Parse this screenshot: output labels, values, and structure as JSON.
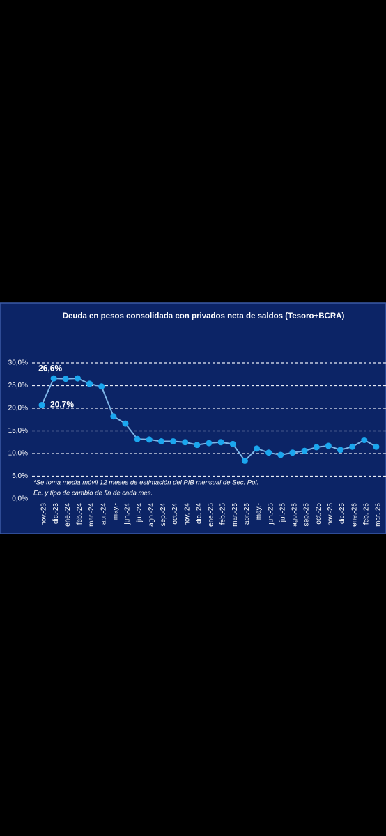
{
  "chart_data": {
    "type": "line",
    "title": "Deuda en pesos consolidada con privados neta de saldos (Tesoro+BCRA)",
    "categories": [
      "nov.-23",
      "dic.-23",
      "ene.-24",
      "feb.-24",
      "mar.-24",
      "abr.-24",
      "may.-",
      "jun.-24",
      "jul.-24",
      "ago.-24",
      "sep.-24",
      "oct.-24",
      "nov.-24",
      "dic.-24",
      "ene.-25",
      "feb.-25",
      "mar.-25",
      "abr.-25",
      "may.-",
      "jun.-25",
      "jul.-25",
      "ago.-25",
      "sep.-25",
      "oct.-25",
      "nov.-25",
      "dic.-25",
      "ene.-26",
      "feb.-26",
      "mar.-26"
    ],
    "series": [
      {
        "color": "#7fb6e8",
        "marker_color": "#1ba6ee",
        "values": [
          20.7,
          26.6,
          26.5,
          26.6,
          25.4,
          24.8,
          18.2,
          16.6,
          13.2,
          13.1,
          12.7,
          12.7,
          12.5,
          11.9,
          12.3,
          12.5,
          12.1,
          8.4,
          11.1,
          10.2,
          9.7,
          10.2,
          10.6,
          11.4,
          11.7,
          10.8,
          11.5,
          13.0,
          11.5
        ],
        "value_labels": [
          "20,7%",
          "26,6%",
          null,
          null,
          null,
          null,
          null,
          null,
          null,
          null,
          null,
          null,
          null,
          null,
          null,
          null,
          null,
          null,
          null,
          null,
          null,
          null,
          null,
          null,
          null,
          null,
          null,
          null,
          null
        ]
      }
    ],
    "ylim": [
      0,
      30
    ],
    "yticks": [
      {
        "value": 0,
        "label": "0,0%"
      },
      {
        "value": 5,
        "label": "5,0%"
      },
      {
        "value": 10,
        "label": "10,0%"
      },
      {
        "value": 15,
        "label": "15,0%"
      },
      {
        "value": 20,
        "label": "20,0%"
      },
      {
        "value": 25,
        "label": "25,0%"
      },
      {
        "value": 30,
        "label": "30,0%"
      }
    ],
    "grid": true,
    "note": [
      "*Se toma media móvil 12 meses de estimación del PIB mensual de Sec. Pol.",
      "Ec. y tipo de cambio de fin de cada mes."
    ]
  }
}
